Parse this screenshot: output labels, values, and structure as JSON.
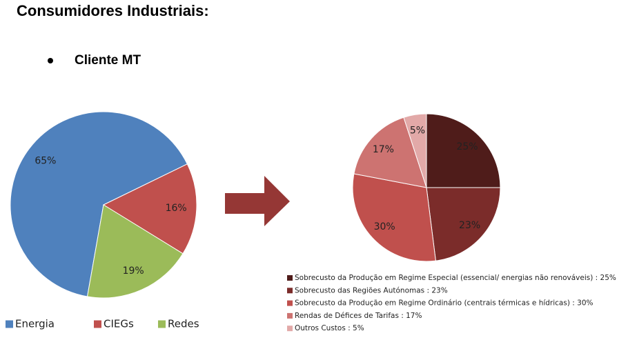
{
  "header": {
    "title": "Consumidores Industriais:",
    "bullet": "Cliente MT"
  },
  "chart_data": [
    {
      "type": "pie",
      "categories": [
        "Energia",
        "CIEGs",
        "Redes"
      ],
      "values": [
        65,
        16,
        19
      ],
      "value_labels": [
        "65%",
        "16%",
        "19%"
      ],
      "colors": [
        "#4f81bd",
        "#c0504d",
        "#9bbb59"
      ],
      "legend": "bottom"
    },
    {
      "type": "pie",
      "categories": [
        "Sobrecusto da Produção em Regime Especial (essencial/ energias não renováveis) :  25%",
        "Sobrecusto das Regiões Autónomas :  23%",
        "Sobrecusto da Produção em Regime Ordinário (centrais térmicas e hídricas) :  30%",
        "Rendas de Défices de Tarifas :  17%",
        "Outros Custos :  5%"
      ],
      "values": [
        25,
        23,
        30,
        17,
        5
      ],
      "value_labels": [
        "25%",
        "23%",
        "30%",
        "17%",
        "5%"
      ],
      "colors": [
        "#4f1c1a",
        "#7b2c2a",
        "#c0504d",
        "#cd7371",
        "#e2a9a8"
      ],
      "legend": "bottom"
    }
  ]
}
